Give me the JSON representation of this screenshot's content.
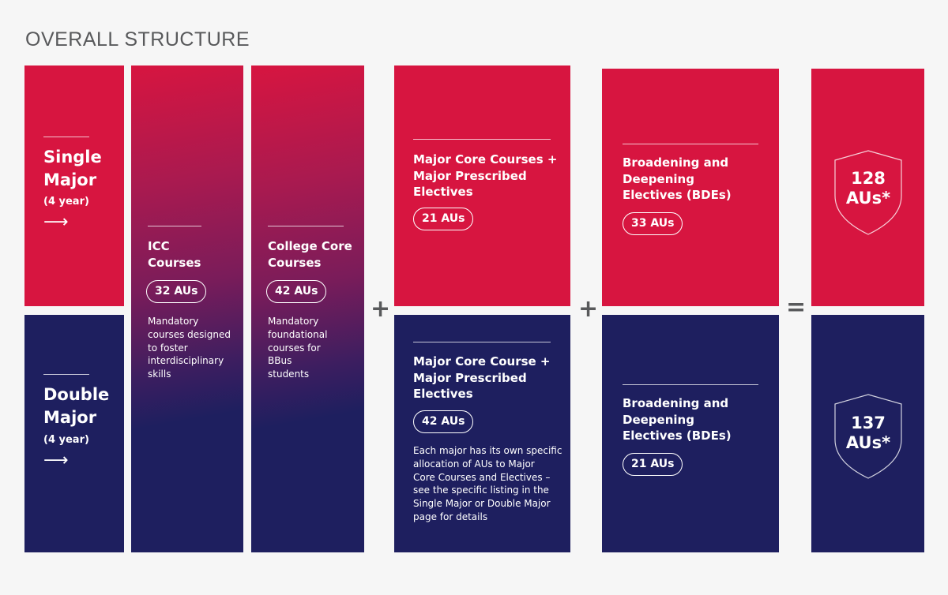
{
  "title": "OVERALL STRUCTURE",
  "colors": {
    "red": "#d71540",
    "navy": "#1e1f5f"
  },
  "tracks": {
    "single": {
      "name_1": "Single",
      "name_2": "Major",
      "duration": "(4 year)",
      "arrow": "⟶"
    },
    "double": {
      "name_1": "Double",
      "name_2": "Major",
      "duration": "(4 year)",
      "arrow": "⟶"
    }
  },
  "icc": {
    "title_1": "ICC",
    "title_2": "Courses",
    "aus": "32 AUs",
    "desc": [
      "Mandatory",
      "courses designed",
      "to foster",
      "interdisciplinary",
      "skills"
    ]
  },
  "college_core": {
    "title_1": "College Core",
    "title_2": "Courses",
    "aus": "42 AUs",
    "desc": [
      "Mandatory",
      "foundational",
      "courses for",
      "BBus",
      "students"
    ]
  },
  "operators": {
    "plus": "+",
    "equals": "="
  },
  "major_single": {
    "title": [
      "Major Core Courses +",
      "Major Prescribed",
      "Electives"
    ],
    "aus": "21 AUs"
  },
  "major_double": {
    "title": [
      "Major Core Course +",
      "Major Prescribed",
      "Electives"
    ],
    "aus": "42 AUs",
    "desc": [
      "Each major has its own specific",
      "allocation of AUs to Major",
      "Core Courses and Electives –",
      "see the specific listing in the",
      "Single Major or Double Major",
      "page for details"
    ]
  },
  "bde_single": {
    "title": [
      "Broadening and",
      "Deepening",
      "Electives (BDEs)"
    ],
    "aus": "33 AUs"
  },
  "bde_double": {
    "title": [
      "Broadening and",
      "Deepening",
      "Electives (BDEs)"
    ],
    "aus": "21 AUs"
  },
  "total_single": {
    "value": "128",
    "unit": "AUs*"
  },
  "total_double": {
    "value": "137",
    "unit": "AUs*"
  }
}
